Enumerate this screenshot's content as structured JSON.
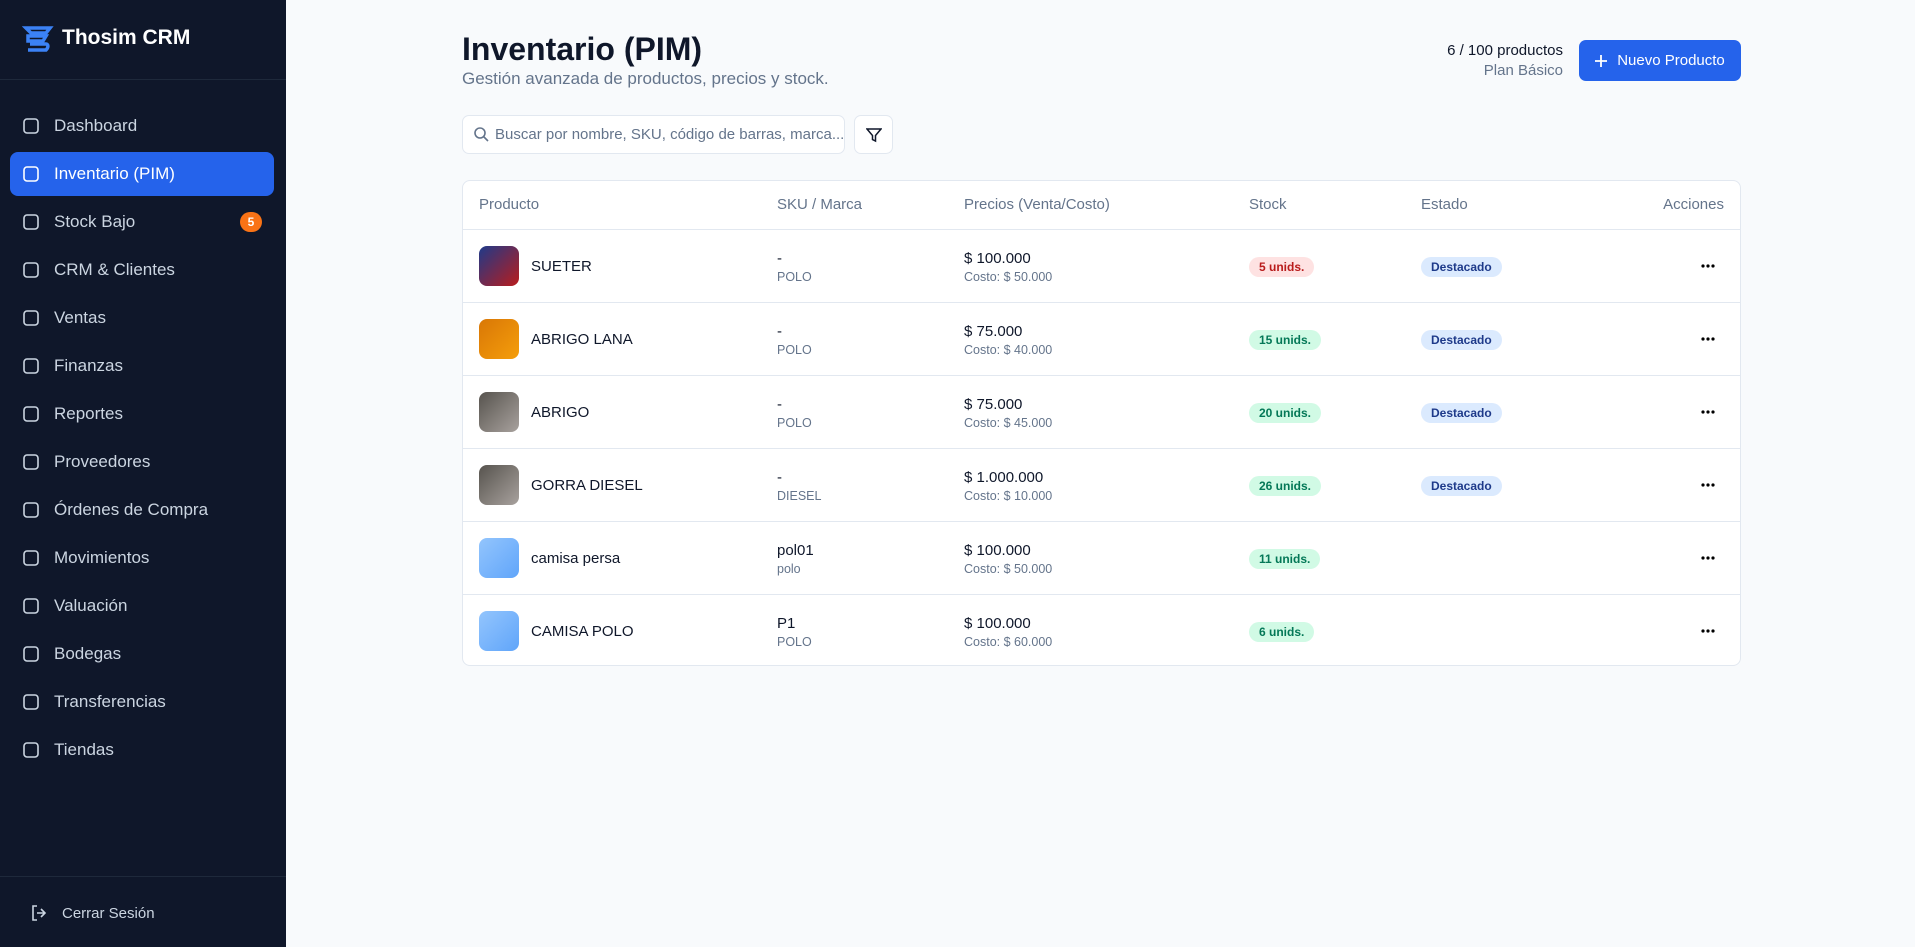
{
  "sidebar": {
    "brand": "Thosim CRM",
    "nav": [
      {
        "label": "Dashboard"
      },
      {
        "label": "Inventario (PIM)",
        "active": true
      },
      {
        "label": "Stock Bajo",
        "badge": "5"
      },
      {
        "label": "CRM & Clientes"
      },
      {
        "label": "Ventas"
      },
      {
        "label": "Finanzas"
      },
      {
        "label": "Reportes"
      },
      {
        "label": "Proveedores"
      },
      {
        "label": "Órdenes de Compra"
      },
      {
        "label": "Movimientos"
      },
      {
        "label": "Valuación"
      },
      {
        "label": "Bodegas"
      },
      {
        "label": "Transferencias"
      },
      {
        "label": "Tiendas"
      }
    ],
    "logout": "Cerrar Sesión"
  },
  "header": {
    "title": "Inventario (PIM)",
    "subtitle": "Gestión avanzada de productos, precios y stock.",
    "usage": "6 / 100 productos",
    "plan": "Plan Básico",
    "button": "Nuevo Producto"
  },
  "search": {
    "placeholder": "Buscar por nombre, SKU, código de barras, marca..."
  },
  "table": {
    "columns": [
      "Producto",
      "SKU / Marca",
      "Precios (Venta/Costo)",
      "Stock",
      "Estado",
      "Acciones"
    ],
    "rows": [
      {
        "name": "SUETER",
        "sku": "-",
        "brand": "POLO",
        "price": "$ 100.000",
        "cost": "Costo: $ 50.000",
        "stock": "5 unids.",
        "stock_color": "#b91c1c",
        "status": "Destacado"
      },
      {
        "name": "ABRIGO LANA",
        "sku": "-",
        "brand": "POLO",
        "price": "$ 75.000",
        "cost": "Costo: $ 40.000",
        "stock": "15 unids.",
        "stock_color": "#047857",
        "status": "Destacado"
      },
      {
        "name": "ABRIGO",
        "sku": "-",
        "brand": "POLO",
        "price": "$ 75.000",
        "cost": "Costo: $ 45.000",
        "stock": "20 unids.",
        "stock_color": "#047857",
        "status": "Destacado"
      },
      {
        "name": "GORRA DIESEL",
        "sku": "-",
        "brand": "DIESEL",
        "price": "$ 1.000.000",
        "cost": "Costo: $ 10.000",
        "stock": "26 unids.",
        "stock_color": "#047857",
        "status": "Destacado"
      },
      {
        "name": "camisa persa",
        "sku": "pol01",
        "brand": "polo",
        "price": "$ 100.000",
        "cost": "Costo: $ 50.000",
        "stock": "11 unids.",
        "stock_color": "#047857"
      },
      {
        "name": "CAMISA POLO",
        "sku": "P1",
        "brand": "POLO",
        "price": "$ 100.000",
        "cost": "Costo: $ 60.000",
        "stock": "6 unids.",
        "stock_color": "#047857"
      }
    ]
  }
}
